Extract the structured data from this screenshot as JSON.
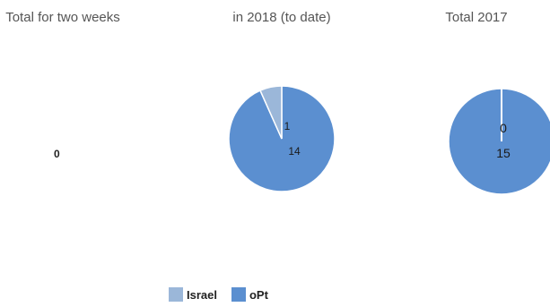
{
  "chart_data": {
    "type": "pie",
    "colors": {
      "Israel": "#9bb7d9",
      "oPt": "#5b8fd0"
    },
    "legend": {
      "position": "bottom",
      "entries": [
        "Israel",
        "oPt"
      ]
    },
    "charts": [
      {
        "title": "Total for two weeks",
        "values": {
          "Israel": 0,
          "oPt": 0
        },
        "total_label": "0"
      },
      {
        "title": "in 2018 (to date)",
        "values": {
          "Israel": 1,
          "oPt": 14
        }
      },
      {
        "title": "Total 2017",
        "values": {
          "Israel": 0,
          "oPt": 15
        }
      }
    ]
  }
}
